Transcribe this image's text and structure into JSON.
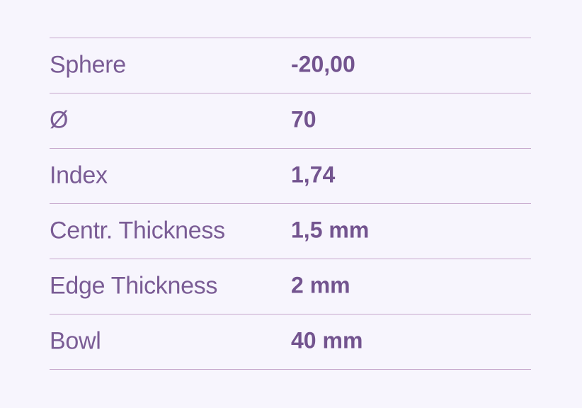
{
  "specs": {
    "rows": [
      {
        "label": "Sphere",
        "value": "-20,00"
      },
      {
        "label": "Ø",
        "value": "70"
      },
      {
        "label": "Index",
        "value": "1,74"
      },
      {
        "label": "Centr. Thickness",
        "value": "1,5 mm"
      },
      {
        "label": "Edge Thickness",
        "value": "2 mm"
      },
      {
        "label": "Bowl",
        "value": "40 mm"
      }
    ]
  },
  "colors": {
    "background": "#f7f5fd",
    "text": "#7a5c95",
    "divider": "#c7a8cd"
  }
}
